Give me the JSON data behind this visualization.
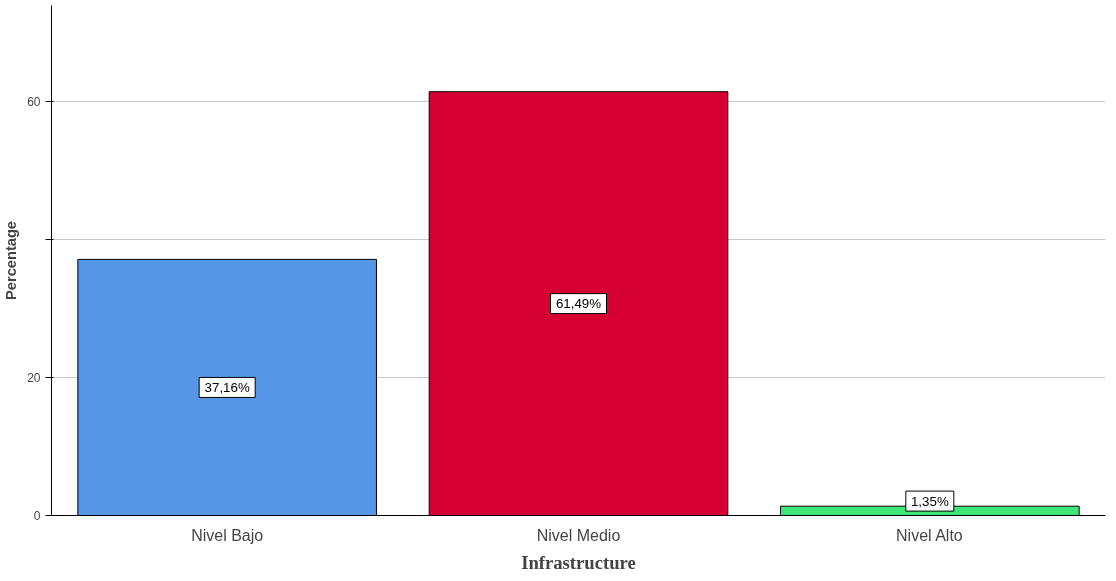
{
  "chart_data": {
    "type": "bar",
    "xlabel": "Infrastructure",
    "ylabel": "Percentage",
    "categories": [
      "Nivel Bajo",
      "Nivel Medio",
      "Nivel Alto"
    ],
    "values": [
      37.16,
      61.49,
      1.35
    ],
    "colors": [
      "#5596e6",
      "#d60032",
      "#3ee677"
    ],
    "value_labels": [
      "37,16%",
      "61,49%",
      "1,35%"
    ],
    "ylim": [
      0,
      74
    ],
    "yticks": [
      0,
      20,
      {
        "value": 40,
        "label": null
      },
      60
    ],
    "grid": "y"
  }
}
